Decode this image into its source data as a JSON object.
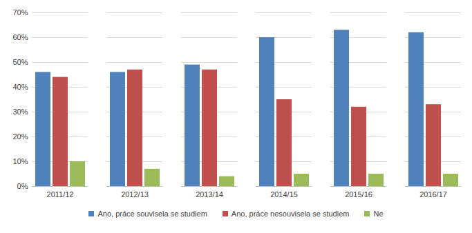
{
  "chart_data": {
    "type": "bar",
    "categories": [
      "2011/12",
      "2012/13",
      "2013/14",
      "2014/15",
      "2015/16",
      "2016/17"
    ],
    "series": [
      {
        "name": "Ano, práce souvisela se studiem",
        "color": "#4f81bd",
        "values": [
          46,
          46,
          49,
          60,
          63,
          62
        ]
      },
      {
        "name": "Ano, práce nesouvisela se studiem",
        "color": "#c0504d",
        "values": [
          44,
          47,
          47,
          35,
          32,
          33
        ]
      },
      {
        "name": "Ne",
        "color": "#9bbb59",
        "values": [
          10,
          7,
          4,
          5,
          5,
          5
        ]
      }
    ],
    "ylim": [
      0,
      70
    ],
    "yticks": [
      {
        "value": 0,
        "label": "0%"
      },
      {
        "value": 10,
        "label": "10%"
      },
      {
        "value": 20,
        "label": "20%"
      },
      {
        "value": 30,
        "label": "30%"
      },
      {
        "value": 40,
        "label": "40%"
      },
      {
        "value": 50,
        "label": "50%"
      },
      {
        "value": 60,
        "label": "60%"
      },
      {
        "value": 70,
        "label": "70%"
      }
    ],
    "grid": true,
    "legend": "bottom"
  }
}
